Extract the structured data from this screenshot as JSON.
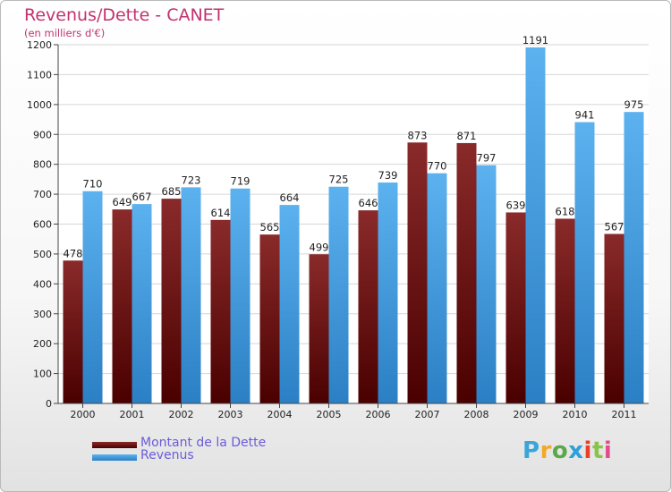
{
  "title": "Revenus/Dette - CANET",
  "subtitle": "(en milliers d'€)",
  "logo": {
    "text": "Proxiti",
    "letter_colors": [
      "#3aa6d8",
      "#f2a92a",
      "#5aa84a",
      "#2fa0d9",
      "#e8412a",
      "#8bc34a",
      "#e44b8d"
    ]
  },
  "legend": {
    "placement": "bottom-left",
    "items": [
      {
        "label": "Montant de la Dette",
        "color": "#7a1010"
      },
      {
        "label": "Revenus",
        "color": "#4aa6ea"
      }
    ]
  },
  "colors": {
    "dette": "#7a1010",
    "revenus": "#4aa6ea",
    "title": "#c2326f"
  },
  "chart_data": {
    "type": "bar",
    "title": "Revenus/Dette - CANET",
    "subtitle": "(en milliers d'€)",
    "xlabel": "",
    "ylabel": "",
    "ylim": [
      0,
      1200
    ],
    "ytick_step": 100,
    "grid": true,
    "categories": [
      "2000",
      "2001",
      "2002",
      "2003",
      "2004",
      "2005",
      "2006",
      "2007",
      "2008",
      "2009",
      "2010",
      "2011"
    ],
    "series": [
      {
        "name": "Montant de la Dette",
        "values": [
          478,
          649,
          685,
          614,
          565,
          499,
          646,
          873,
          871,
          639,
          618,
          567
        ]
      },
      {
        "name": "Revenus",
        "values": [
          710,
          667,
          723,
          719,
          664,
          725,
          739,
          770,
          797,
          1191,
          941,
          975
        ]
      }
    ]
  }
}
